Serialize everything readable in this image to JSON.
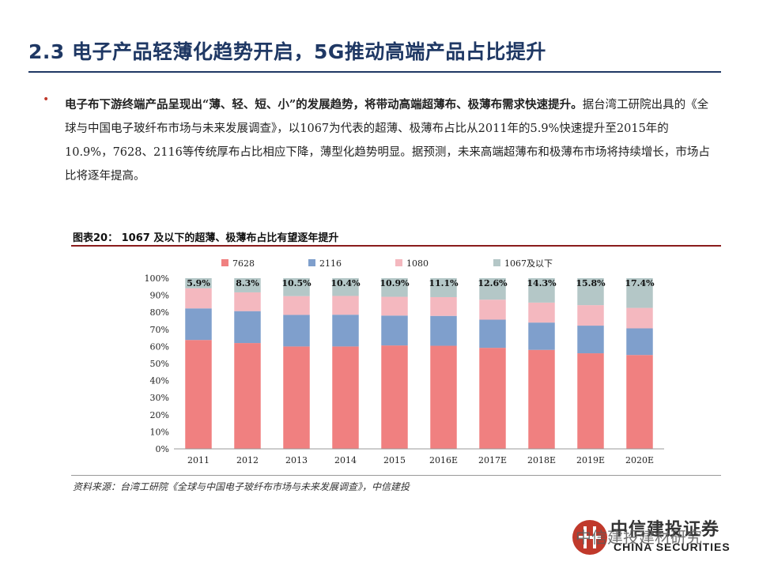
{
  "header": {
    "title": "2.3 电子产品轻薄化趋势开启，5G推动高端产品占比提升"
  },
  "body_text": {
    "bold": "电子布下游终端产品呈现出“薄、轻、短、小”的发展趋势，将带动高端超薄布、极薄布需求快速提升。",
    "normal": "据台湾工研院出具的《全球与中国电子玻纤布市场与未来发展调查》，以1067为代表的超薄、极薄布占比从2011年的5.9%快速提升至2015年的10.9%，7628、2116等传统厚布占比相应下降，薄型化趋势明显。据预测，未来高端超薄布和极薄布市场将持续增长，市场占比将逐年提高。"
  },
  "figure": {
    "title": "图表20：  1067 及以下的超薄、极薄布占比有望逐年提升",
    "source": "资料来源：台湾工研院《全球与中国电子玻纤布市场与未来发展调查》，中信建投"
  },
  "logo": {
    "text": "中信建投证券",
    "sub": "CHINA SECURITIES",
    "watermark": "中信建投建材研究"
  },
  "chart_data": {
    "type": "bar",
    "stacked": true,
    "categories": [
      "2011",
      "2012",
      "2013",
      "2014",
      "2015",
      "2016E",
      "2017E",
      "2018E",
      "2019E",
      "2020E"
    ],
    "series": [
      {
        "name": "7628",
        "color": "#f08080",
        "values": [
          63.8,
          62,
          60,
          60,
          60.6,
          60.4,
          59.2,
          58,
          56,
          55
        ]
      },
      {
        "name": "2116",
        "color": "#7f9fcc",
        "values": [
          18.5,
          18.7,
          18.5,
          18.6,
          17.5,
          17.5,
          16.5,
          16,
          16.2,
          15.6
        ]
      },
      {
        "name": "1080",
        "color": "#f4b8bf",
        "values": [
          11.8,
          11,
          11,
          11,
          11,
          11,
          11.7,
          11.7,
          12,
          12
        ]
      },
      {
        "name": "1067及以下",
        "color": "#b4c7c7",
        "values": [
          5.9,
          8.3,
          10.5,
          10.4,
          10.9,
          11.1,
          12.6,
          14.3,
          15.8,
          17.4
        ]
      }
    ],
    "data_labels": [
      "5.9%",
      "8.3%",
      "10.5%",
      "10.4%",
      "10.9%",
      "11.1%",
      "12.6%",
      "14.3%",
      "15.8%",
      "17.4%"
    ],
    "y_ticks": [
      "0%",
      "10%",
      "20%",
      "30%",
      "40%",
      "50%",
      "60%",
      "70%",
      "80%",
      "90%",
      "100%"
    ],
    "ylim": [
      0,
      100
    ],
    "legend": "top",
    "grid": false
  }
}
